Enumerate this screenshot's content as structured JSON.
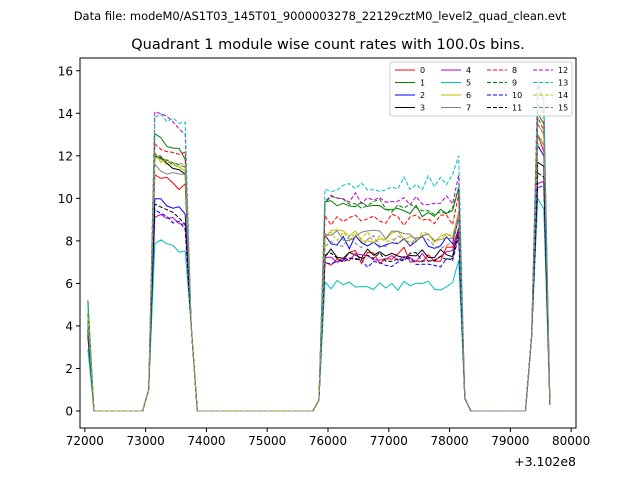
{
  "chart_data": {
    "type": "line",
    "suptitle": "Data file: modeM0/AS1T03_145T01_9000003278_22129cztM0_level2_quad_clean.evt",
    "title": "Quadrant 1 module wise count rates with 100.0s bins.",
    "x_offset_label": "+3.102e8",
    "xlim": [
      71920,
      80080
    ],
    "ylim": [
      -0.8,
      16.6
    ],
    "xticks": [
      72000,
      73000,
      74000,
      75000,
      76000,
      77000,
      78000,
      79000,
      80000
    ],
    "xtick_labels": [
      "72000",
      "73000",
      "74000",
      "75000",
      "76000",
      "77000",
      "78000",
      "79000",
      "80000"
    ],
    "yticks": [
      0,
      2,
      4,
      6,
      8,
      10,
      12,
      14,
      16
    ],
    "ytick_labels": [
      "0",
      "2",
      "4",
      "6",
      "8",
      "10",
      "12",
      "14",
      "16"
    ],
    "legend_position": "top-right",
    "series": [
      {
        "name": "0",
        "color": "#ff0000",
        "style": "solid",
        "first": 4.5,
        "s1": [
          11,
          10.5
        ],
        "s2": [
          7.2,
          7.4
        ],
        "s3": [
          13,
          12.2
        ],
        "noise": 0.4
      },
      {
        "name": "1",
        "color": "#008000",
        "style": "solid",
        "first": 5.2,
        "s1": [
          13,
          12.0
        ],
        "s2": [
          9.8,
          9.3
        ],
        "s3": [
          14,
          13.5
        ],
        "noise": 0.3
      },
      {
        "name": "2",
        "color": "#0000ff",
        "style": "solid",
        "first": 3.9,
        "s1": [
          10,
          9.4
        ],
        "s2": [
          8.0,
          7.9
        ],
        "s3": [
          12.5,
          12
        ],
        "noise": 0.35
      },
      {
        "name": "3",
        "color": "#000000",
        "style": "solid",
        "first": 3.5,
        "s1": [
          12,
          11.2
        ],
        "s2": [
          7.4,
          7.4
        ],
        "s3": [
          11.7,
          11.5
        ],
        "noise": 0.25
      },
      {
        "name": "4",
        "color": "#bf00bf",
        "style": "solid",
        "first": 4.0,
        "s1": [
          9.2,
          8.8
        ],
        "s2": [
          7.2,
          7.3
        ],
        "s3": [
          10.7,
          10.8
        ],
        "noise": 0.25
      },
      {
        "name": "5",
        "color": "#00bfbf",
        "style": "solid",
        "first": 2.9,
        "s1": [
          8.0,
          7.5
        ],
        "s2": [
          5.9,
          5.9
        ],
        "s3": [
          10.0,
          9.5
        ],
        "noise": 0.25
      },
      {
        "name": "6",
        "color": "#bfbf00",
        "style": "solid",
        "first": 4.8,
        "s1": [
          12,
          11.2
        ],
        "s2": [
          8.3,
          8.1
        ],
        "s3": [
          13.5,
          13
        ],
        "noise": 0.3
      },
      {
        "name": "7",
        "color": "#808080",
        "style": "solid",
        "first": 4.2,
        "s1": [
          11.5,
          11
        ],
        "s2": [
          8.3,
          8.2
        ],
        "s3": [
          13,
          12.5
        ],
        "noise": 0.3
      },
      {
        "name": "8",
        "color": "#ff0000",
        "style": "dashed",
        "first": 4.3,
        "s1": [
          12.5,
          12
        ],
        "s2": [
          9.0,
          9.0
        ],
        "s3": [
          13.8,
          13.2
        ],
        "noise": 0.3
      },
      {
        "name": "9",
        "color": "#008000",
        "style": "dashed",
        "first": 4.6,
        "s1": [
          12,
          11.6
        ],
        "s2": [
          10.0,
          9.3
        ],
        "s3": [
          14.5,
          14
        ],
        "noise": 0.3
      },
      {
        "name": "10",
        "color": "#0000ff",
        "style": "dashed",
        "first": 3.6,
        "s1": [
          9.5,
          8.6
        ],
        "s2": [
          7.0,
          7.0
        ],
        "s3": [
          10.5,
          10.6
        ],
        "noise": 0.25
      },
      {
        "name": "11",
        "color": "#000000",
        "style": "dashed",
        "first": 3.8,
        "s1": [
          9.8,
          8.8
        ],
        "s2": [
          7.2,
          7.2
        ],
        "s3": [
          11.2,
          11
        ],
        "noise": 0.25
      },
      {
        "name": "12",
        "color": "#bf00bf",
        "style": "dashed",
        "first": 4.1,
        "s1": [
          14.2,
          13
        ],
        "s2": [
          10.1,
          9.9
        ],
        "s3": [
          15.5,
          14.5
        ],
        "noise": 0.3
      },
      {
        "name": "13",
        "color": "#00bfbf",
        "style": "dashed",
        "first": 5.0,
        "s1": [
          14.0,
          13.5
        ],
        "s2": [
          10.5,
          10.8
        ],
        "s3": [
          15.0,
          14.8
        ],
        "noise": 0.35
      },
      {
        "name": "14",
        "color": "#bfbf00",
        "style": "dashed",
        "first": 4.4,
        "s1": [
          11.8,
          11.5
        ],
        "s2": [
          8.2,
          8.1
        ],
        "s3": [
          12.5,
          13
        ],
        "noise": 0.3
      },
      {
        "name": "15",
        "color": "#808080",
        "style": "dashed",
        "first": 4.0,
        "s1": [
          12,
          11.4
        ],
        "s2": [
          8.0,
          7.9
        ],
        "s3": [
          13.5,
          13
        ],
        "noise": 0.3
      }
    ]
  }
}
